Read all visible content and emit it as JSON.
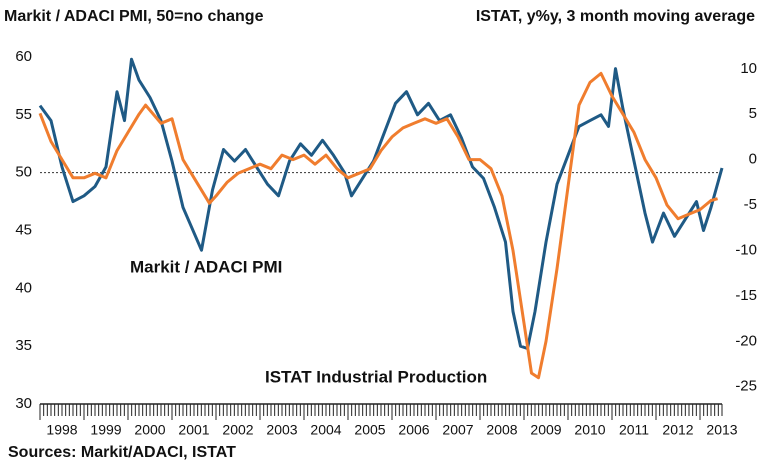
{
  "chart_data": {
    "type": "line",
    "title": "Markit / ADACI PMI, 50=no change",
    "subtitle": "ISTAT, y%y, 3 month moving average",
    "source": "Sources: Markit/ADACI, ISTAT",
    "xlim": [
      1998,
      2013.5
    ],
    "xticks": [
      1998,
      1999,
      2000,
      2001,
      2002,
      2003,
      2004,
      2005,
      2006,
      2007,
      2008,
      2009,
      2010,
      2011,
      2012,
      2013
    ],
    "ylim": [
      30,
      60
    ],
    "yticks": [
      30,
      35,
      40,
      45,
      50,
      55,
      60
    ],
    "y2lim": [
      -26.9,
      11.3
    ],
    "y2ticks": [
      -25,
      -20,
      -15,
      -10,
      -5,
      0,
      5,
      10
    ],
    "hline": 50,
    "series": [
      {
        "name": "Markit / ADACI PMI",
        "color": "#1f5a85",
        "x": [
          1998.0,
          1998.25,
          1998.5,
          1998.75,
          1999.0,
          1999.25,
          1999.5,
          1999.75,
          1999.92,
          2000.08,
          2000.25,
          2000.5,
          2000.75,
          2001.0,
          2001.25,
          2001.42,
          2001.67,
          2001.92,
          2002.17,
          2002.42,
          2002.67,
          2002.92,
          2003.17,
          2003.42,
          2003.67,
          2003.92,
          2004.17,
          2004.42,
          2004.67,
          2004.92,
          2005.08,
          2005.33,
          2005.58,
          2005.83,
          2006.08,
          2006.33,
          2006.58,
          2006.83,
          2007.08,
          2007.33,
          2007.58,
          2007.83,
          2008.08,
          2008.33,
          2008.58,
          2008.75,
          2008.92,
          2009.08,
          2009.25,
          2009.5,
          2009.75,
          2010.0,
          2010.25,
          2010.5,
          2010.75,
          2010.92,
          2011.08,
          2011.25,
          2011.5,
          2011.75,
          2011.92,
          2012.17,
          2012.42,
          2012.67,
          2012.92,
          2013.08,
          2013.25,
          2013.5
        ],
        "values": [
          55.8,
          54.5,
          50.5,
          47.5,
          48,
          48.8,
          50.5,
          57,
          54.5,
          59.8,
          58,
          56.5,
          54.5,
          51,
          47,
          45.5,
          43.3,
          48.5,
          52,
          51,
          52,
          50.5,
          49,
          48,
          51,
          52.5,
          51.5,
          52.8,
          51.5,
          50,
          48,
          49.5,
          51,
          53.5,
          56,
          57,
          55,
          56,
          54.5,
          55,
          53,
          50.5,
          49.5,
          47,
          44,
          38,
          35,
          34.8,
          38,
          44,
          49,
          51.5,
          54,
          54.5,
          55,
          54,
          59,
          55.5,
          51,
          46.5,
          44,
          46.5,
          44.5,
          46,
          47.5,
          45,
          47,
          50.4
        ]
      },
      {
        "name": "ISTAT Industrial Production",
        "color": "#f07d2e",
        "axis": "y2",
        "x": [
          1998.0,
          1998.25,
          1998.5,
          1998.75,
          1999.0,
          1999.25,
          1999.5,
          1999.75,
          2000.0,
          2000.25,
          2000.4,
          2000.75,
          2001.0,
          2001.25,
          2001.5,
          2001.85,
          2002.0,
          2002.25,
          2002.5,
          2002.75,
          2003.0,
          2003.25,
          2003.5,
          2003.75,
          2004.0,
          2004.25,
          2004.5,
          2004.75,
          2005.0,
          2005.25,
          2005.5,
          2005.75,
          2006.0,
          2006.25,
          2006.5,
          2006.75,
          2007.0,
          2007.25,
          2007.5,
          2007.75,
          2008.0,
          2008.25,
          2008.5,
          2008.75,
          2009.0,
          2009.17,
          2009.33,
          2009.5,
          2009.75,
          2010.0,
          2010.25,
          2010.5,
          2010.75,
          2011.0,
          2011.25,
          2011.5,
          2011.75,
          2012.0,
          2012.25,
          2012.5,
          2012.75,
          2013.0,
          2013.25,
          2013.4
        ],
        "values": [
          5.1,
          2,
          0,
          -2,
          -2,
          -1.5,
          -2,
          1,
          3,
          5,
          6,
          4,
          4.5,
          0,
          -2,
          -4.8,
          -4,
          -2.5,
          -1.5,
          -1,
          -0.5,
          -1,
          0.5,
          0,
          0.5,
          -0.5,
          0.5,
          -1,
          -2,
          -1.5,
          -1,
          1,
          2.5,
          3.5,
          4,
          4.5,
          4,
          4.5,
          2.5,
          0,
          0,
          -1,
          -4,
          -10,
          -18,
          -23.5,
          -24,
          -20,
          -12,
          -3,
          6,
          8.5,
          9.5,
          7,
          5,
          3,
          0,
          -2,
          -5,
          -6.5,
          -6,
          -5.5,
          -4.5,
          -4.3
        ]
      }
    ]
  }
}
